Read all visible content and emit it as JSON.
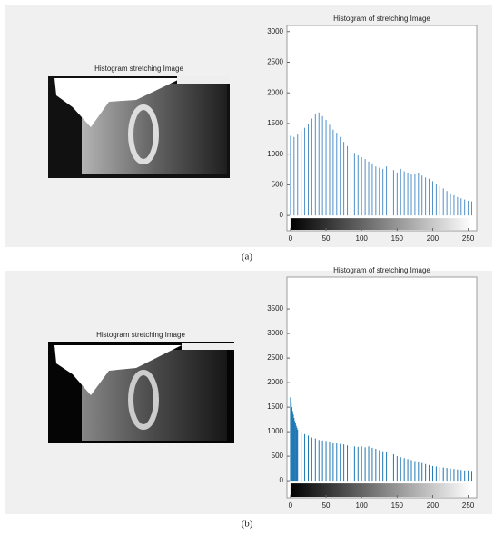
{
  "chart_data": [
    {
      "type": "stem",
      "title": "Histogram of stretching Image",
      "image_title": "Histogram stretching Image",
      "caption": "(a)",
      "x": [
        0,
        5,
        10,
        15,
        20,
        25,
        30,
        35,
        40,
        45,
        50,
        55,
        60,
        65,
        70,
        75,
        80,
        85,
        90,
        95,
        100,
        105,
        110,
        115,
        120,
        125,
        130,
        135,
        140,
        145,
        150,
        155,
        160,
        165,
        170,
        175,
        180,
        185,
        190,
        195,
        200,
        205,
        210,
        215,
        220,
        225,
        230,
        235,
        240,
        245,
        250,
        255
      ],
      "values": [
        1300,
        1280,
        1320,
        1380,
        1430,
        1500,
        1580,
        1650,
        1680,
        1620,
        1560,
        1480,
        1400,
        1350,
        1280,
        1200,
        1130,
        1080,
        1020,
        980,
        950,
        920,
        880,
        850,
        800,
        780,
        760,
        800,
        770,
        740,
        700,
        760,
        720,
        700,
        680,
        680,
        700,
        650,
        620,
        600,
        560,
        520,
        480,
        440,
        400,
        360,
        330,
        300,
        280,
        260,
        240,
        230
      ],
      "color": "#4f8fc8",
      "xlim": [
        -5,
        262
      ],
      "ylim": [
        -250,
        3100
      ],
      "xticks": [
        0,
        50,
        100,
        150,
        200,
        250
      ],
      "yticks": [
        0,
        500,
        1000,
        1500,
        2000,
        2500,
        3000
      ]
    },
    {
      "type": "stem",
      "title": "Histogram of stretching Image",
      "image_title": "Histogram stretching Image",
      "caption": "(b)",
      "x": [
        0,
        1,
        2,
        3,
        4,
        5,
        6,
        7,
        8,
        9,
        10,
        15,
        20,
        25,
        30,
        35,
        40,
        45,
        50,
        55,
        60,
        65,
        70,
        75,
        80,
        85,
        90,
        95,
        100,
        105,
        110,
        115,
        120,
        125,
        130,
        135,
        140,
        145,
        150,
        155,
        160,
        165,
        170,
        175,
        180,
        185,
        190,
        195,
        200,
        205,
        210,
        215,
        220,
        225,
        230,
        235,
        240,
        245,
        250,
        255
      ],
      "values": [
        1700,
        1600,
        1500,
        1420,
        1350,
        1280,
        1220,
        1170,
        1120,
        1080,
        1040,
        990,
        950,
        920,
        880,
        860,
        830,
        820,
        810,
        800,
        780,
        760,
        750,
        740,
        720,
        710,
        700,
        690,
        700,
        680,
        700,
        670,
        650,
        620,
        600,
        580,
        560,
        540,
        500,
        480,
        460,
        440,
        420,
        400,
        380,
        360,
        340,
        320,
        300,
        290,
        280,
        270,
        260,
        250,
        240,
        230,
        220,
        210,
        210,
        200
      ],
      "color": "#1f77b4",
      "xlim": [
        -5,
        262
      ],
      "ylim": [
        -350,
        4150
      ],
      "xticks": [
        0,
        50,
        100,
        150,
        200,
        250
      ],
      "yticks": [
        0,
        500,
        1000,
        1500,
        2000,
        2500,
        3000,
        3500
      ]
    }
  ]
}
